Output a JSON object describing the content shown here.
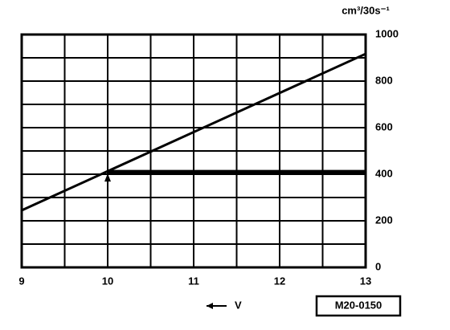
{
  "chart_data": {
    "type": "line",
    "y_axis_label": "cm³/30s⁻¹",
    "x_axis_label": "V",
    "code": "M20-0150",
    "x": [
      9,
      13
    ],
    "series": [
      {
        "color": "#000000",
        "values": [
          245,
          917
        ]
      }
    ],
    "operating_point": {
      "x": 10,
      "y": 410
    },
    "xlim": [
      9,
      13
    ],
    "xticks": [
      9,
      10,
      11,
      12,
      13
    ],
    "x_minor_ticks": [
      9.5,
      10.5,
      11.5,
      12.5
    ],
    "ylim": [
      0,
      1000
    ],
    "yticks": [
      0,
      200,
      400,
      600,
      800,
      1000
    ],
    "y_minor_ticks": [
      100,
      300,
      500,
      700,
      900
    ],
    "grid": true
  }
}
